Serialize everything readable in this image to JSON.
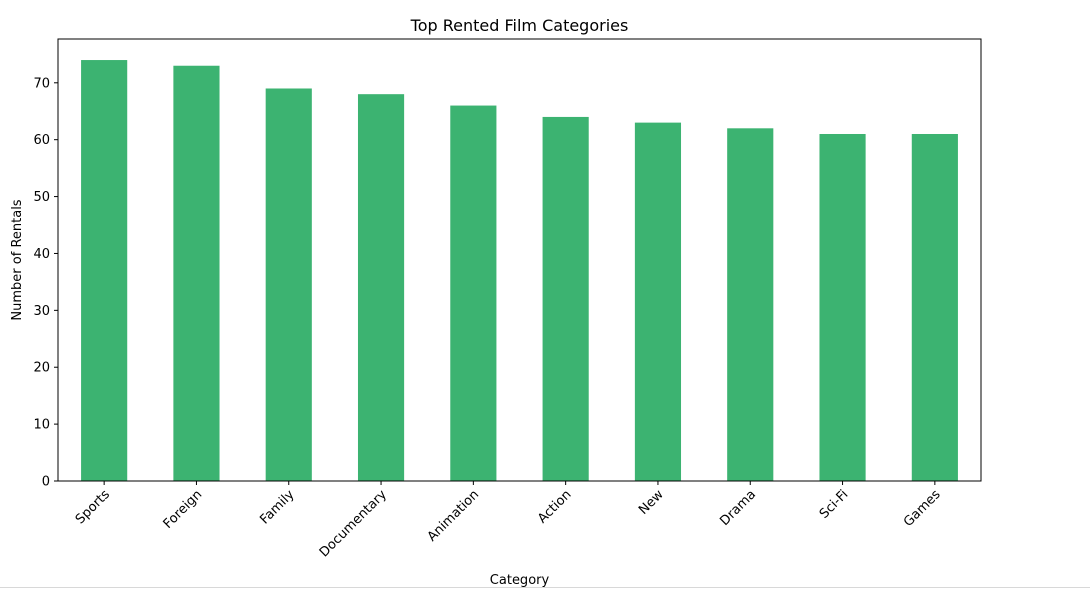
{
  "chart_data": {
    "type": "bar",
    "title": "Top Rented Film Categories",
    "xlabel": "Category",
    "ylabel": "Number of Rentals",
    "categories": [
      "Sports",
      "Foreign",
      "Family",
      "Documentary",
      "Animation",
      "Action",
      "New",
      "Drama",
      "Sci-Fi",
      "Games"
    ],
    "values": [
      74,
      73,
      69,
      68,
      66,
      64,
      63,
      62,
      61,
      61
    ],
    "ylim": [
      0,
      77.7
    ],
    "yticks": [
      0,
      10,
      20,
      30,
      40,
      50,
      60,
      70
    ],
    "bar_color": "#3cb371",
    "grid": false,
    "legend": "none"
  }
}
